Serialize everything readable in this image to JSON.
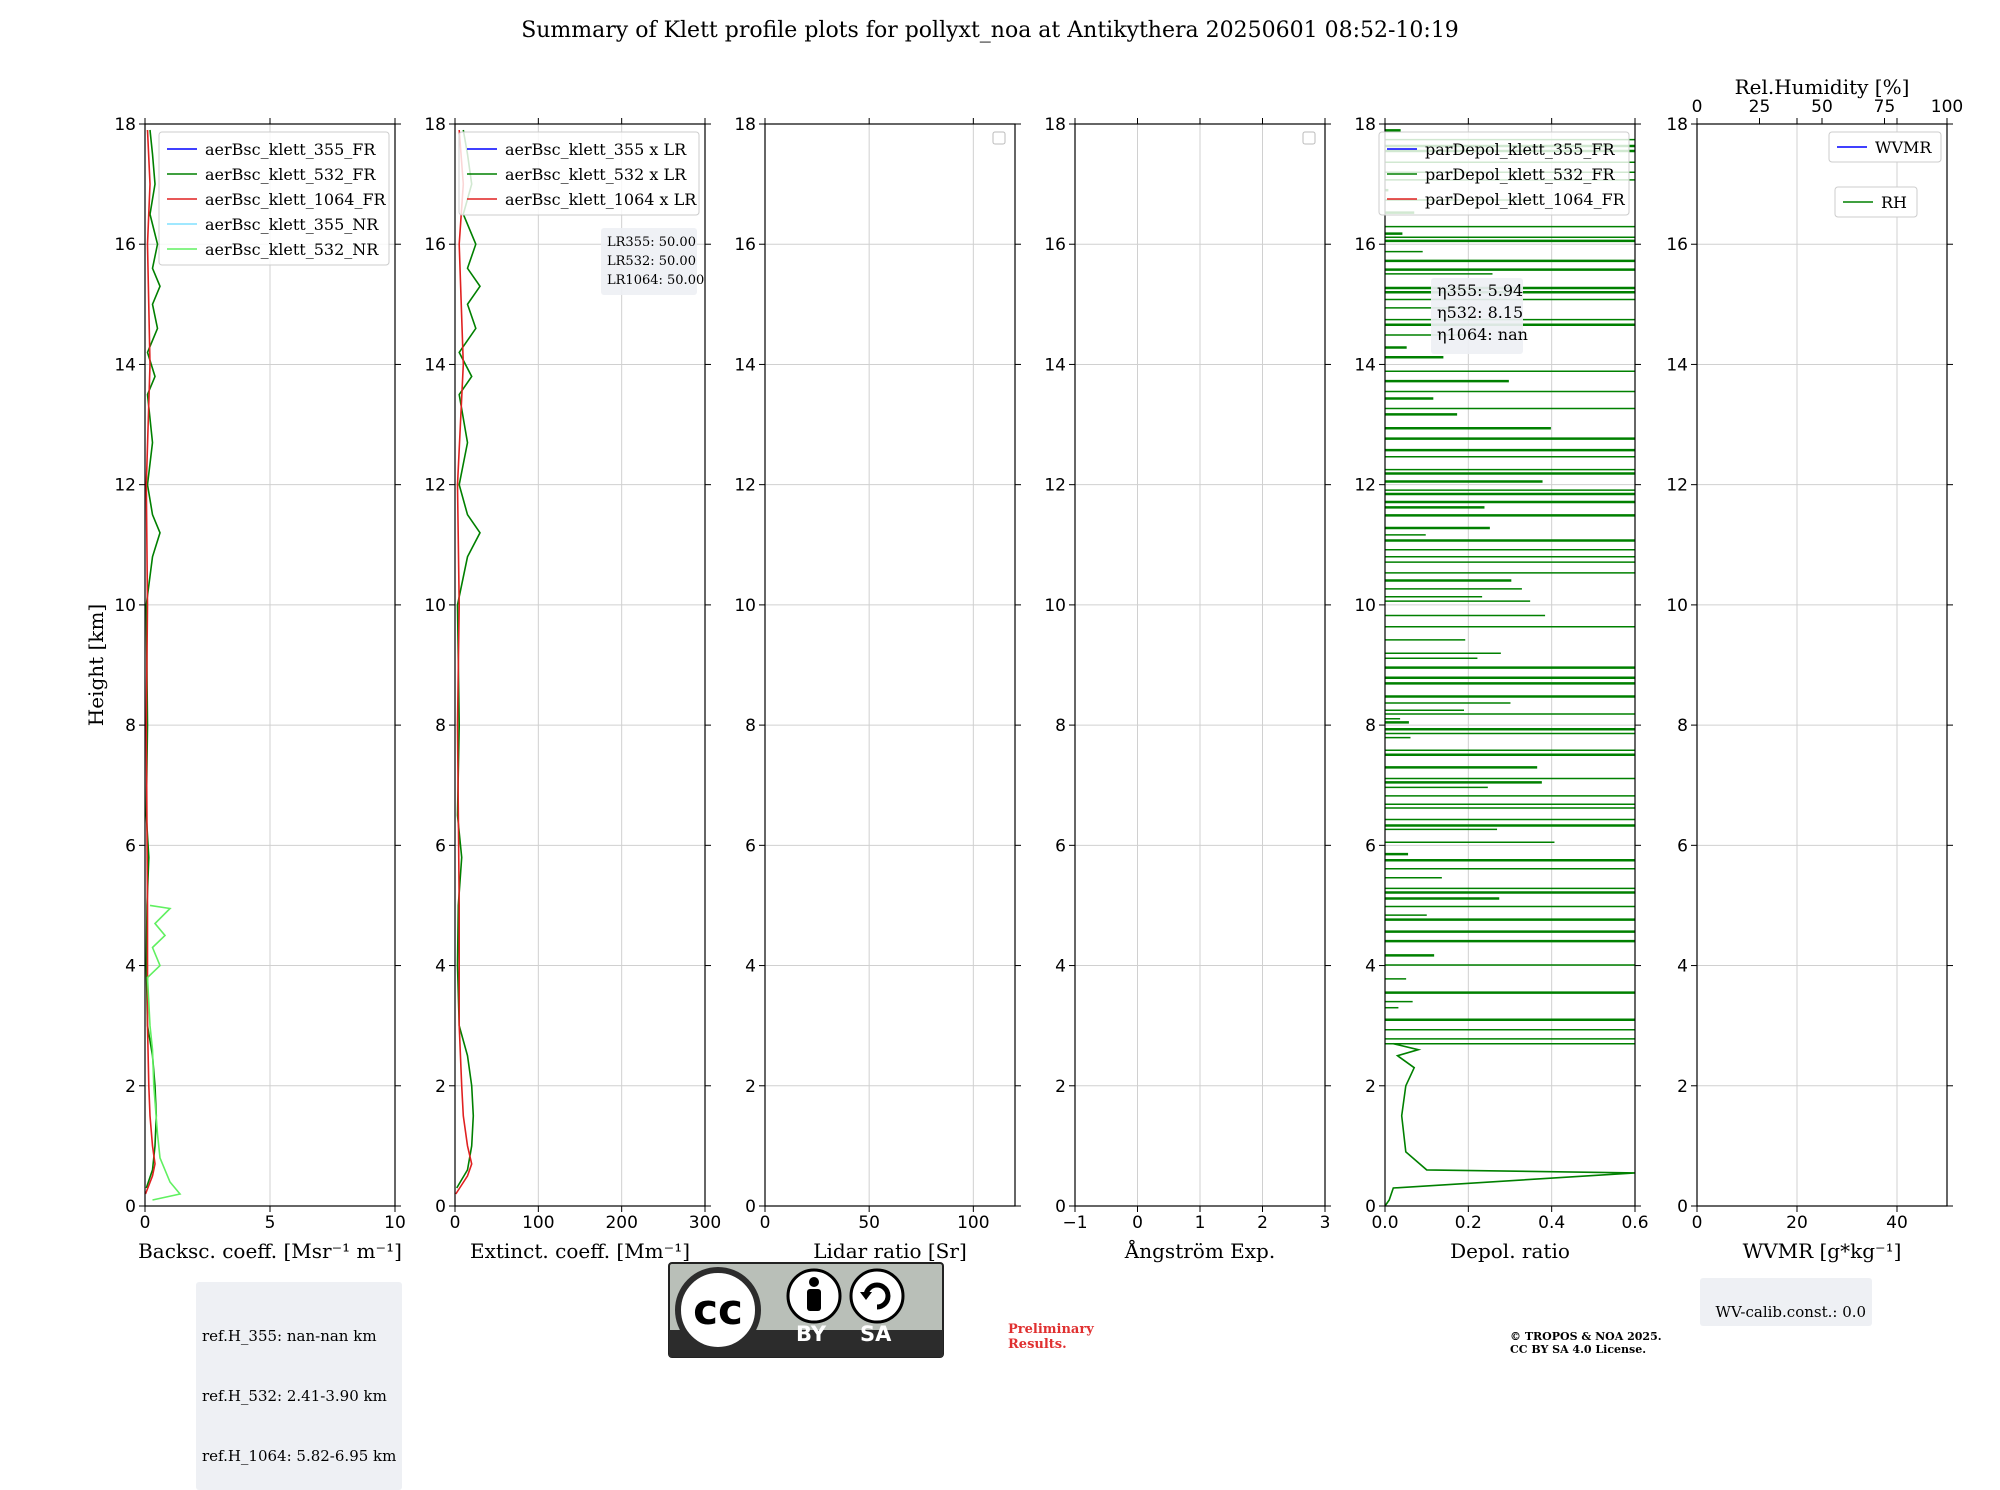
{
  "figure": {
    "title": "Summary of Klett profile plots for pollyxt_noa at Antikythera 20250601 08:52-10:19",
    "preliminary_line1": "Preliminary",
    "preliminary_line2": "Results.",
    "copyright_line1": "© TROPOS & NOA 2025.",
    "copyright_line2": "CC BY SA 4.0 License.",
    "cc_label_by": "BY",
    "cc_label_sa": "SA",
    "ref_heights": [
      "ref.H_355: nan-nan km",
      "ref.H_532: 2.41-3.90 km",
      "ref.H_1064: 5.82-6.95 km"
    ],
    "wv_calib": "WV-calib.const.: 0.0"
  },
  "chart_data": [
    {
      "type": "line",
      "id": "backscatter",
      "xlabel": "Backsc. coeff. [Msr⁻¹ m⁻¹]",
      "ylabel": "Height [km]",
      "xlim": [
        0,
        10
      ],
      "ylim": [
        0,
        18
      ],
      "xticks": [
        0,
        5,
        10
      ],
      "yticks": [
        0,
        2,
        4,
        6,
        8,
        10,
        12,
        14,
        16,
        18
      ],
      "grid": true,
      "legend_position": "top-right",
      "series": [
        {
          "name": "aerBsc_klett_355_FR",
          "color": "#0000ff",
          "points": []
        },
        {
          "name": "aerBsc_klett_532_FR",
          "color": "#008000",
          "points": [
            [
              0.05,
              0.3
            ],
            [
              0.3,
              0.6
            ],
            [
              0.4,
              1.0
            ],
            [
              0.45,
              1.5
            ],
            [
              0.4,
              2.0
            ],
            [
              0.3,
              2.5
            ],
            [
              0.1,
              3.0
            ],
            [
              0.05,
              4.0
            ],
            [
              0.08,
              5.0
            ],
            [
              0.15,
              5.8
            ],
            [
              0.05,
              6.5
            ],
            [
              0.1,
              8.0
            ],
            [
              0.05,
              10.0
            ],
            [
              0.3,
              10.8
            ],
            [
              0.6,
              11.2
            ],
            [
              0.3,
              11.5
            ],
            [
              0.1,
              12.0
            ],
            [
              0.3,
              12.7
            ],
            [
              0.1,
              13.5
            ],
            [
              0.4,
              13.8
            ],
            [
              0.1,
              14.2
            ],
            [
              0.5,
              14.6
            ],
            [
              0.3,
              15.0
            ],
            [
              0.6,
              15.3
            ],
            [
              0.3,
              15.6
            ],
            [
              0.5,
              16.0
            ],
            [
              0.2,
              16.5
            ],
            [
              0.4,
              17.0
            ],
            [
              0.3,
              17.5
            ],
            [
              0.2,
              17.9
            ]
          ]
        },
        {
          "name": "aerBsc_klett_1064_FR",
          "color": "#e02020",
          "points": [
            [
              0.02,
              0.2
            ],
            [
              0.3,
              0.5
            ],
            [
              0.4,
              0.7
            ],
            [
              0.3,
              1.0
            ],
            [
              0.2,
              1.5
            ],
            [
              0.15,
              2.0
            ],
            [
              0.1,
              3.0
            ],
            [
              0.1,
              5.0
            ],
            [
              0.05,
              8.0
            ],
            [
              0.1,
              10.0
            ],
            [
              0.05,
              12.0
            ],
            [
              0.2,
              14.0
            ],
            [
              0.1,
              16.0
            ],
            [
              0.2,
              17.0
            ],
            [
              0.1,
              17.9
            ]
          ]
        },
        {
          "name": "aerBsc_klett_355_NR",
          "color": "#80e0ff",
          "points": []
        },
        {
          "name": "aerBsc_klett_532_NR",
          "color": "#60f060",
          "points": [
            [
              0.3,
              0.1
            ],
            [
              1.4,
              0.2
            ],
            [
              1.0,
              0.4
            ],
            [
              0.6,
              0.8
            ],
            [
              0.5,
              1.2
            ],
            [
              0.35,
              2.0
            ],
            [
              0.3,
              2.6
            ],
            [
              0.2,
              3.0
            ],
            [
              0.1,
              3.8
            ],
            [
              0.6,
              4.0
            ],
            [
              0.3,
              4.3
            ],
            [
              0.8,
              4.5
            ],
            [
              0.4,
              4.7
            ],
            [
              1.0,
              4.95
            ],
            [
              0.2,
              5.0
            ]
          ]
        }
      ],
      "annotations": []
    },
    {
      "type": "line",
      "id": "extinction",
      "xlabel": "Extinct. coeff. [Mm⁻¹]",
      "ylabel": "",
      "xlim": [
        0,
        300
      ],
      "ylim": [
        0,
        18
      ],
      "xticks": [
        0,
        100,
        200,
        300
      ],
      "yticks": [
        0,
        2,
        4,
        6,
        8,
        10,
        12,
        14,
        16,
        18
      ],
      "grid": true,
      "legend_position": "top-right",
      "series": [
        {
          "name": "aerBsc_klett_355 x LR",
          "color": "#0000ff",
          "points": []
        },
        {
          "name": "aerBsc_klett_532 x LR",
          "color": "#008000",
          "points": [
            [
              2,
              0.3
            ],
            [
              15,
              0.6
            ],
            [
              20,
              1.0
            ],
            [
              22,
              1.5
            ],
            [
              20,
              2.0
            ],
            [
              15,
              2.5
            ],
            [
              5,
              3.0
            ],
            [
              3,
              4.0
            ],
            [
              4,
              5.0
            ],
            [
              8,
              5.8
            ],
            [
              3,
              6.5
            ],
            [
              5,
              8.0
            ],
            [
              3,
              10.0
            ],
            [
              15,
              10.8
            ],
            [
              30,
              11.2
            ],
            [
              15,
              11.5
            ],
            [
              5,
              12.0
            ],
            [
              15,
              12.7
            ],
            [
              5,
              13.5
            ],
            [
              20,
              13.8
            ],
            [
              5,
              14.2
            ],
            [
              25,
              14.6
            ],
            [
              15,
              15.0
            ],
            [
              30,
              15.3
            ],
            [
              15,
              15.6
            ],
            [
              25,
              16.0
            ],
            [
              10,
              16.5
            ],
            [
              20,
              17.0
            ],
            [
              15,
              17.5
            ],
            [
              10,
              17.9
            ]
          ]
        },
        {
          "name": "aerBsc_klett_1064 x LR",
          "color": "#e02020",
          "points": [
            [
              1,
              0.2
            ],
            [
              15,
              0.5
            ],
            [
              20,
              0.7
            ],
            [
              15,
              1.0
            ],
            [
              10,
              1.5
            ],
            [
              8,
              2.0
            ],
            [
              5,
              3.0
            ],
            [
              5,
              5.0
            ],
            [
              3,
              8.0
            ],
            [
              5,
              10.0
            ],
            [
              3,
              12.0
            ],
            [
              10,
              14.0
            ],
            [
              5,
              16.0
            ],
            [
              10,
              17.0
            ],
            [
              5,
              17.9
            ]
          ]
        }
      ],
      "annotations": [
        "LR355: 50.00",
        "LR532: 50.00",
        "LR1064: 50.00"
      ]
    },
    {
      "type": "line",
      "id": "lidar_ratio",
      "xlabel": "Lidar ratio [Sr]",
      "ylabel": "",
      "xlim": [
        0,
        120
      ],
      "ylim": [
        0,
        18
      ],
      "xticks": [
        0,
        50,
        100
      ],
      "yticks": [
        0,
        2,
        4,
        6,
        8,
        10,
        12,
        14,
        16,
        18
      ],
      "grid": true,
      "legend_position": "top-right",
      "series": [],
      "annotations": []
    },
    {
      "type": "line",
      "id": "angstrom",
      "xlabel": "Ångström Exp.",
      "ylabel": "",
      "xlim": [
        -1,
        3
      ],
      "ylim": [
        0,
        18
      ],
      "xticks": [
        -1,
        0,
        1,
        2,
        3
      ],
      "yticks": [
        0,
        2,
        4,
        6,
        8,
        10,
        12,
        14,
        16,
        18
      ],
      "grid": true,
      "legend_position": "top-right",
      "series": [],
      "annotations": []
    },
    {
      "type": "line",
      "id": "depol",
      "xlabel": "Depol. ratio",
      "ylabel": "",
      "xlim": [
        0.0,
        0.6
      ],
      "ylim": [
        0,
        18
      ],
      "xticks": [
        0.0,
        0.2,
        0.4,
        0.6
      ],
      "yticks": [
        0,
        2,
        4,
        6,
        8,
        10,
        12,
        14,
        16,
        18
      ],
      "grid": true,
      "legend_position": "top-right",
      "series": [
        {
          "name": "parDepol_klett_355_FR",
          "color": "#0000ff",
          "points": []
        },
        {
          "name": "parDepol_klett_532_FR",
          "color": "#008000",
          "points": [
            [
              0.0,
              0.0
            ],
            [
              0.01,
              0.1
            ],
            [
              0.02,
              0.3
            ],
            [
              0.6,
              0.55
            ],
            [
              0.1,
              0.6
            ],
            [
              0.05,
              0.9
            ],
            [
              0.04,
              1.5
            ],
            [
              0.05,
              2.0
            ],
            [
              0.07,
              2.3
            ],
            [
              0.03,
              2.5
            ],
            [
              0.08,
              2.6
            ],
            [
              0.02,
              2.7
            ]
          ]
        },
        {
          "name": "parDepol_klett_1064_FR",
          "color": "#e02020",
          "points": []
        }
      ],
      "noise_band": {
        "y_min": 2.7,
        "y_max": 17.9,
        "x_max": 0.6
      },
      "annotations": [
        "η355: 5.94",
        "η532: 8.15",
        "η1064: nan"
      ]
    },
    {
      "type": "line",
      "id": "wvmr",
      "xlabel": "WVMR [g*kg⁻¹]",
      "ylabel": "",
      "xlim": [
        0,
        50
      ],
      "ylim": [
        0,
        18
      ],
      "xticks": [
        0,
        20,
        40
      ],
      "yticks": [
        0,
        2,
        4,
        6,
        8,
        10,
        12,
        14,
        16,
        18
      ],
      "top_axis": {
        "label": "Rel.Humidity [%]",
        "lim": [
          0,
          100
        ],
        "ticks": [
          0,
          25,
          50,
          75,
          100
        ]
      },
      "grid": true,
      "legend_position": "top-right",
      "series": [
        {
          "name": "WVMR",
          "color": "#0000ff",
          "points": []
        },
        {
          "name": "RH",
          "color": "#008000",
          "points": []
        }
      ],
      "annotations": []
    }
  ]
}
